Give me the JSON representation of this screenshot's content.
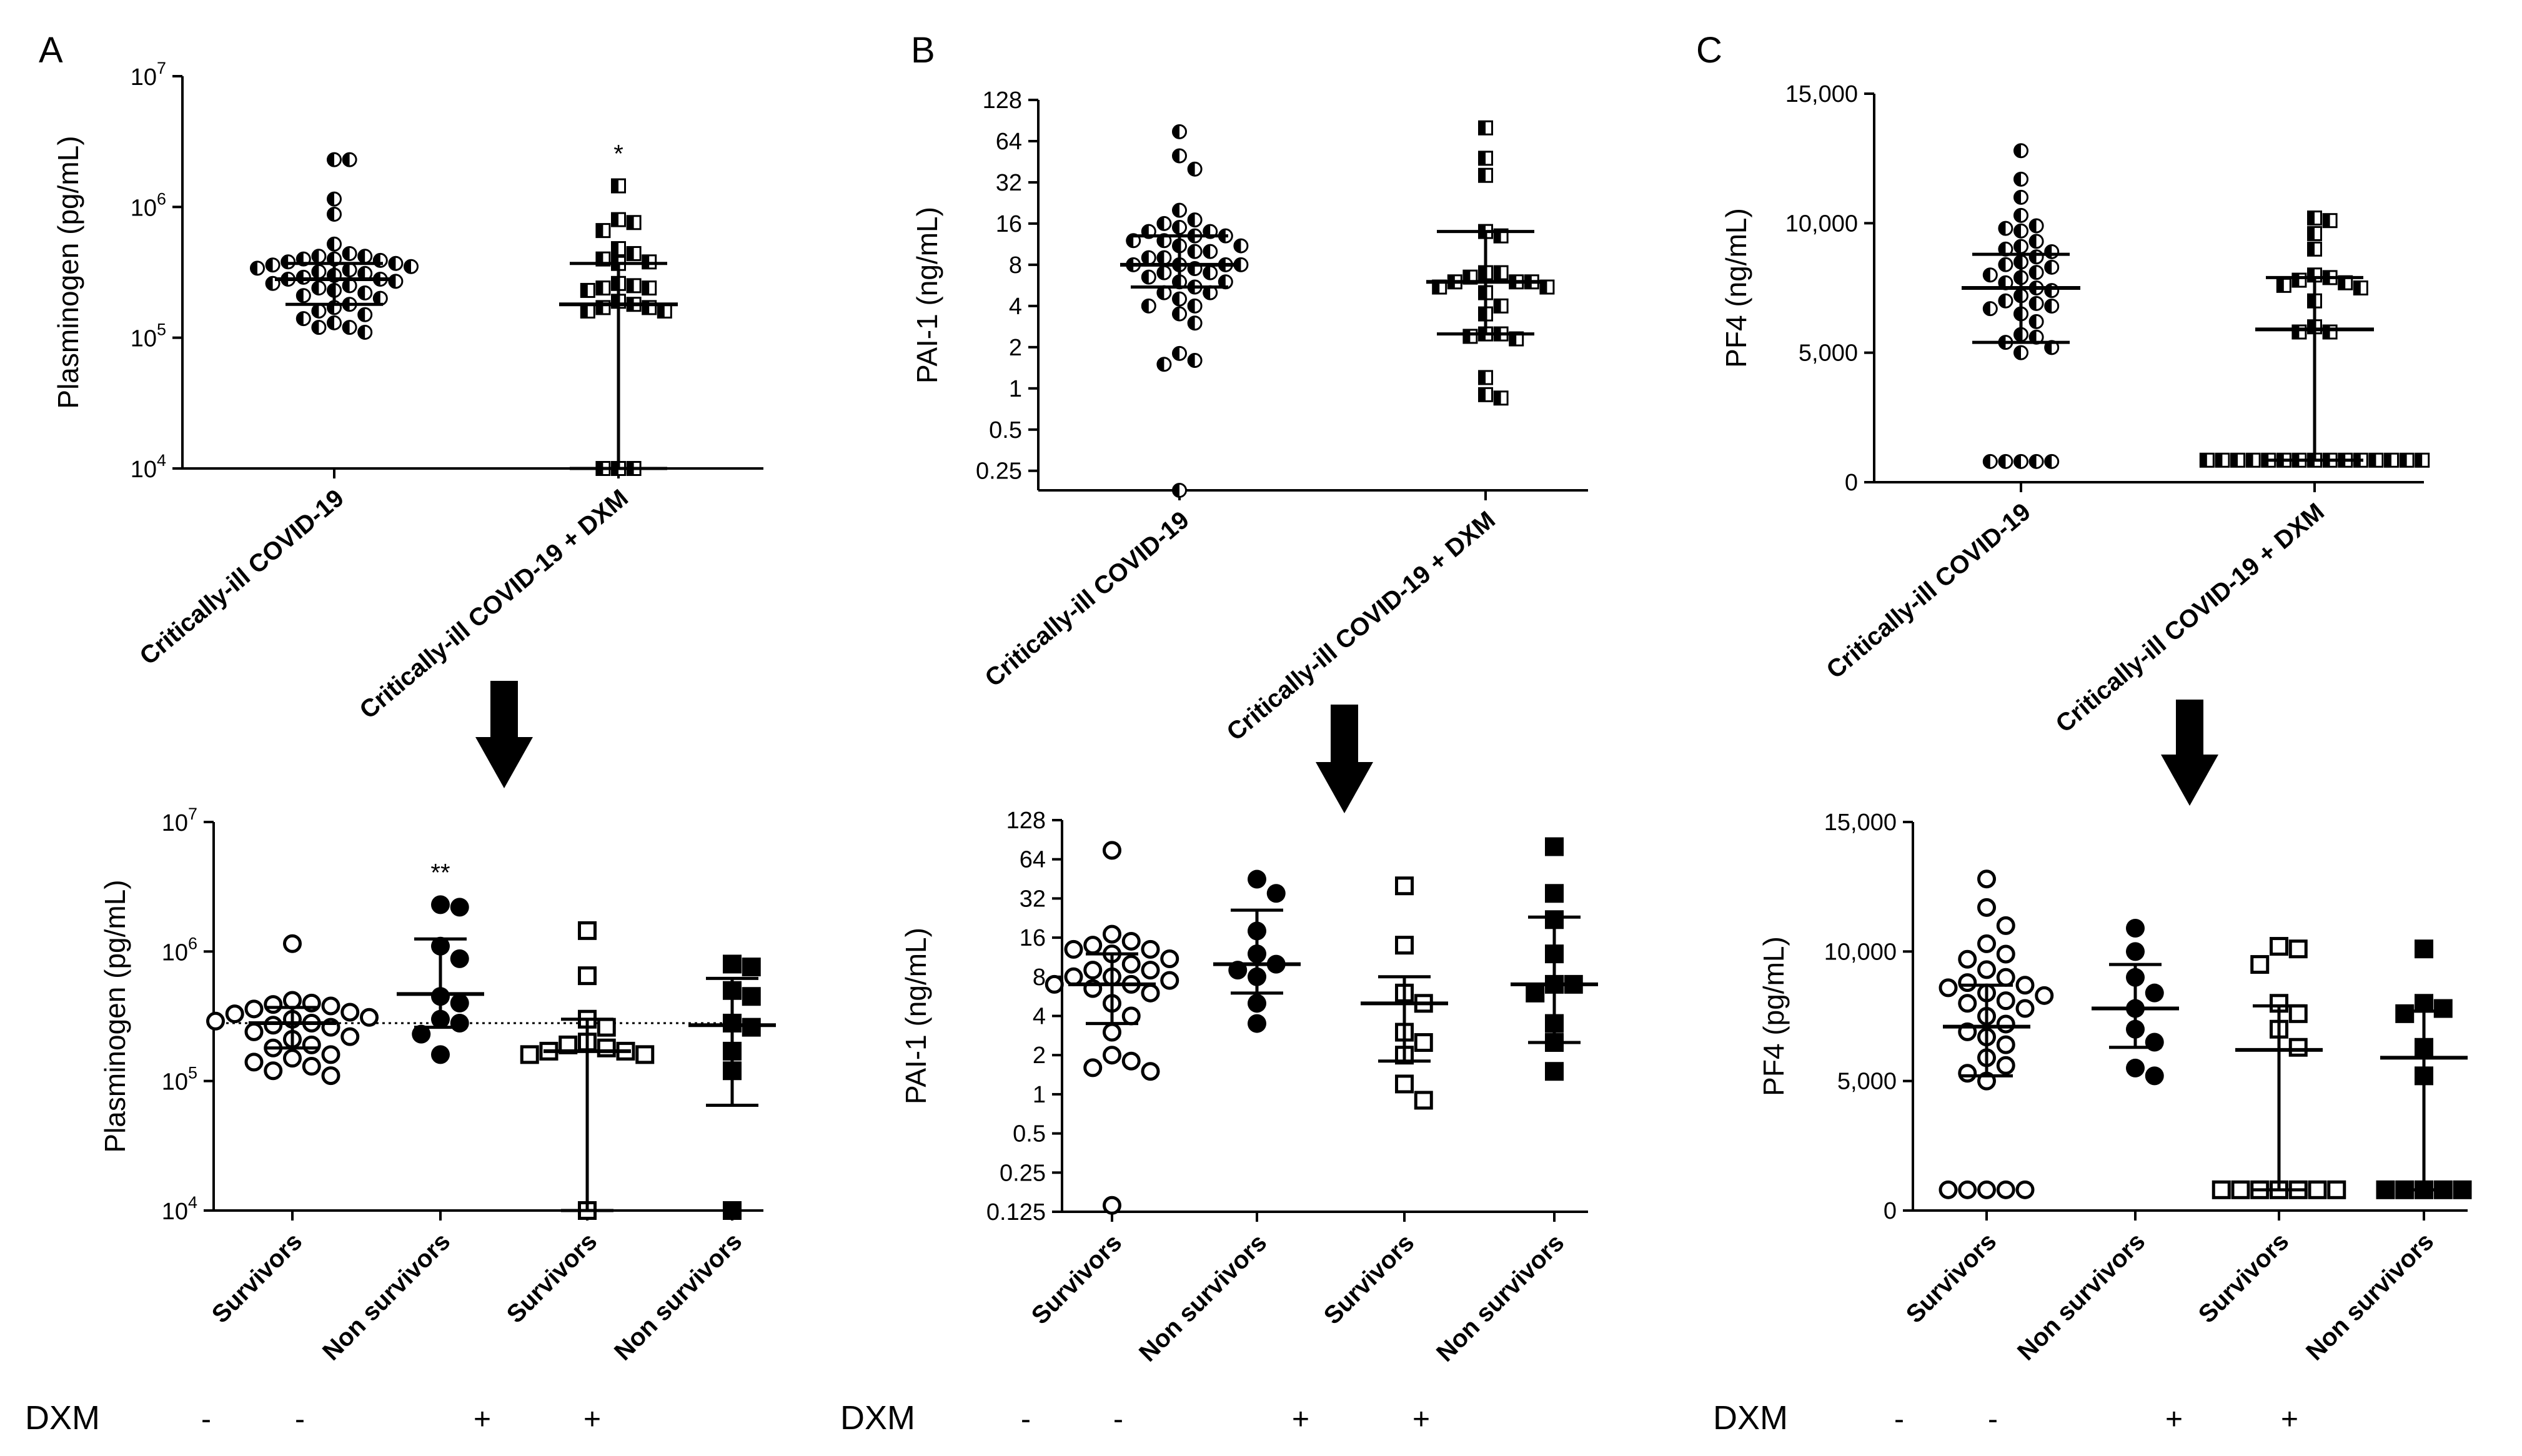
{
  "figure": {
    "panel_labels": [
      "A",
      "B",
      "C"
    ],
    "dxm_row_label": "DXM",
    "dxm_signs": [
      "-",
      "-",
      "+",
      "+"
    ]
  },
  "chart_data": [
    {
      "id": "A_top",
      "type": "scatter",
      "panel": "A",
      "ylabel": "Plasminogen (pg/mL)",
      "yscale": "log10",
      "ylim": [
        10000,
        10000000
      ],
      "yticks": [
        {
          "value": 10000,
          "base": "10",
          "exp": "4"
        },
        {
          "value": 100000,
          "base": "10",
          "exp": "5"
        },
        {
          "value": 1000000,
          "base": "10",
          "exp": "6"
        },
        {
          "value": 10000000,
          "base": "10",
          "exp": "7"
        }
      ],
      "categories": [
        "Critically-ill COVID-19",
        "Critically-ill COVID-19 + DXM"
      ],
      "groups": [
        {
          "name": "Critically-ill COVID-19",
          "marker": "half-circle",
          "values": [
            2300000,
            2300000,
            1150000,
            880000,
            520000,
            440000,
            420000,
            420000,
            400000,
            400000,
            390000,
            380000,
            370000,
            360000,
            350000,
            340000,
            330000,
            320000,
            310000,
            300000,
            290000,
            280000,
            280000,
            270000,
            260000,
            250000,
            240000,
            230000,
            220000,
            210000,
            200000,
            180000,
            170000,
            160000,
            150000,
            140000,
            130000,
            120000,
            120000,
            110000
          ],
          "median": 280000,
          "q1": 180000,
          "q3": 370000
        },
        {
          "name": "Critically-ill COVID-19 + DXM",
          "marker": "half-square",
          "values": [
            1450000,
            800000,
            760000,
            660000,
            480000,
            440000,
            400000,
            380000,
            370000,
            260000,
            250000,
            240000,
            240000,
            230000,
            190000,
            180000,
            170000,
            170000,
            160000,
            160000,
            10000,
            10000,
            10000
          ],
          "median": 180000,
          "q1": 10000,
          "q3": 370000
        }
      ],
      "annotations": [
        {
          "text": "*",
          "group": 1
        }
      ]
    },
    {
      "id": "B_top",
      "type": "scatter",
      "panel": "B",
      "ylabel": "PAI-1 (ng/mL)",
      "yscale": "log2",
      "ylim": [
        0.18,
        128
      ],
      "yticks": [
        "0.25",
        "0.5",
        "1",
        "2",
        "4",
        "8",
        "16",
        "32",
        "64",
        "128"
      ],
      "categories": [
        "Critically-ill COVID-19",
        "Critically-ill COVID-19 + DXM"
      ],
      "groups": [
        {
          "name": "Critically-ill COVID-19",
          "marker": "half-circle",
          "values": [
            75,
            50,
            40,
            20,
            17,
            16,
            15,
            14,
            14,
            13,
            13,
            12,
            12,
            11,
            11,
            10,
            10,
            9,
            9,
            8,
            8,
            8,
            8,
            7.5,
            7,
            7,
            6.5,
            6,
            6,
            5.5,
            5,
            5,
            4.5,
            4,
            4,
            3.5,
            3,
            1.8,
            1.6,
            1.5,
            0.18
          ],
          "median": 8,
          "q1": 5.5,
          "q3": 13
        },
        {
          "name": "Critically-ill COVID-19 + DXM",
          "marker": "half-square",
          "values": [
            80,
            48,
            36,
            14,
            13,
            7,
            7,
            6.5,
            6,
            6,
            6,
            5.5,
            5.5,
            5,
            4,
            3.5,
            2.5,
            2.5,
            2.4,
            2.3,
            1.2,
            0.9,
            0.85
          ],
          "median": 6,
          "q1": 2.5,
          "q3": 14
        }
      ]
    },
    {
      "id": "C_top",
      "type": "scatter",
      "panel": "C",
      "ylabel": "PF4 (ng/mL)",
      "yscale": "linear",
      "ylim": [
        0,
        15000
      ],
      "yticks": [
        "0",
        "5,000",
        "10,000",
        "15,000"
      ],
      "categories": [
        "Critically-ill COVID-19",
        "Critically-ill COVID-19 + DXM"
      ],
      "groups": [
        {
          "name": "Critically-ill COVID-19",
          "marker": "half-circle",
          "values": [
            12800,
            11700,
            11000,
            10300,
            9900,
            9800,
            9700,
            9300,
            9100,
            9000,
            8900,
            8700,
            8500,
            8400,
            8300,
            8100,
            8000,
            7900,
            7700,
            7500,
            7400,
            7200,
            7000,
            6900,
            6800,
            6700,
            6500,
            6200,
            5700,
            5600,
            5400,
            5200,
            5000,
            800,
            800,
            800,
            800,
            800
          ],
          "median": 7500,
          "q1": 5400,
          "q3": 8800
        },
        {
          "name": "Critically-ill COVID-19 + DXM",
          "marker": "half-square",
          "values": [
            10200,
            10100,
            9600,
            9000,
            8000,
            7900,
            7800,
            7700,
            7600,
            7500,
            7000,
            6000,
            5800,
            5800,
            850,
            850,
            850,
            850,
            850,
            850,
            850,
            850,
            850,
            850,
            850,
            850,
            850,
            850,
            850
          ],
          "median": 5900,
          "q1": 850,
          "q3": 7900
        }
      ]
    },
    {
      "id": "A_bottom",
      "type": "scatter",
      "panel": "A",
      "ylabel": "Plasminogen (pg/mL)",
      "yscale": "log10",
      "ylim": [
        10000,
        10000000
      ],
      "yticks": [
        {
          "value": 10000,
          "base": "10",
          "exp": "4"
        },
        {
          "value": 100000,
          "base": "10",
          "exp": "5"
        },
        {
          "value": 1000000,
          "base": "10",
          "exp": "6"
        },
        {
          "value": 10000000,
          "base": "10",
          "exp": "7"
        }
      ],
      "categories": [
        "Survivors",
        "Non survivors",
        "Survivors",
        "Non survivors"
      ],
      "reference_line": 280000,
      "groups": [
        {
          "name": "Survivors",
          "dxm": "-",
          "marker": "open-circle",
          "values": [
            1150000,
            420000,
            400000,
            390000,
            380000,
            360000,
            340000,
            330000,
            310000,
            300000,
            290000,
            280000,
            270000,
            260000,
            240000,
            220000,
            210000,
            190000,
            180000,
            160000,
            150000,
            140000,
            130000,
            120000,
            110000
          ],
          "median": 280000,
          "q1": 180000,
          "q3": 370000
        },
        {
          "name": "Non survivors",
          "dxm": "-",
          "marker": "filled-circle",
          "values": [
            2300000,
            2200000,
            1100000,
            880000,
            450000,
            400000,
            300000,
            280000,
            230000,
            160000
          ],
          "median": 470000,
          "q1": 260000,
          "q3": 1250000
        },
        {
          "name": "Survivors",
          "dxm": "+",
          "marker": "open-square",
          "values": [
            1450000,
            650000,
            300000,
            260000,
            200000,
            190000,
            180000,
            170000,
            170000,
            160000,
            160000,
            10000
          ],
          "median": 170000,
          "q1": 10000,
          "q3": 300000
        },
        {
          "name": "Non survivors",
          "dxm": "+",
          "marker": "filled-square",
          "values": [
            800000,
            760000,
            500000,
            450000,
            280000,
            260000,
            170000,
            120000,
            10000
          ],
          "median": 270000,
          "q1": 65000,
          "q3": 620000
        }
      ],
      "annotations": [
        {
          "text": "**",
          "group": 1
        }
      ]
    },
    {
      "id": "B_bottom",
      "type": "scatter",
      "panel": "B",
      "ylabel": "PAI-1 (ng/mL)",
      "yscale": "log2",
      "ylim": [
        0.125,
        128
      ],
      "yticks": [
        "0.125",
        "0.25",
        "0.5",
        "1",
        "2",
        "4",
        "8",
        "16",
        "32",
        "64",
        "128"
      ],
      "categories": [
        "Survivors",
        "Non survivors",
        "Survivors",
        "Non survivors"
      ],
      "groups": [
        {
          "name": "Survivors",
          "dxm": "-",
          "marker": "open-circle",
          "values": [
            75,
            17,
            15,
            14,
            13,
            13,
            12,
            11,
            10,
            9,
            9,
            8,
            8,
            7.5,
            7,
            7,
            6.5,
            6,
            5,
            4,
            3,
            2,
            1.8,
            1.6,
            1.5,
            0.14
          ],
          "median": 7,
          "q1": 3.5,
          "q3": 12
        },
        {
          "name": "Non survivors",
          "dxm": "-",
          "marker": "filled-circle",
          "values": [
            45,
            35,
            18,
            12,
            10,
            9,
            8,
            5,
            3.5
          ],
          "median": 10,
          "q1": 6,
          "q3": 26
        },
        {
          "name": "Survivors",
          "dxm": "+",
          "marker": "open-square",
          "values": [
            40,
            14,
            6,
            5,
            3,
            2.5,
            2,
            1.2,
            0.9
          ],
          "median": 5,
          "q1": 1.8,
          "q3": 8
        },
        {
          "name": "Non survivors",
          "dxm": "+",
          "marker": "filled-square",
          "values": [
            80,
            35,
            22,
            12,
            7,
            7,
            6,
            3.5,
            2.5,
            1.5
          ],
          "median": 7,
          "q1": 2.5,
          "q3": 23
        }
      ]
    },
    {
      "id": "C_bottom",
      "type": "scatter",
      "panel": "C",
      "ylabel": "PF4 (pg/mL)",
      "yscale": "linear",
      "ylim": [
        0,
        15000
      ],
      "yticks": [
        "0",
        "5,000",
        "10,000",
        "15,000"
      ],
      "categories": [
        "Survivors",
        "Non survivors",
        "Survivors",
        "Non survivors"
      ],
      "groups": [
        {
          "name": "Survivors",
          "dxm": "-",
          "marker": "open-circle",
          "values": [
            12800,
            11700,
            11000,
            10300,
            9900,
            9700,
            9300,
            9000,
            8800,
            8700,
            8600,
            8400,
            8300,
            8100,
            8000,
            7800,
            7500,
            7200,
            6900,
            6700,
            6400,
            5900,
            5600,
            5300,
            5000,
            800,
            800,
            800,
            800,
            800
          ],
          "median": 7100,
          "q1": 5200,
          "q3": 8700
        },
        {
          "name": "Non survivors",
          "dxm": "-",
          "marker": "filled-circle",
          "values": [
            10900,
            10000,
            9000,
            8400,
            7800,
            7000,
            6500,
            5500,
            5200
          ],
          "median": 7800,
          "q1": 6300,
          "q3": 9500
        },
        {
          "name": "Survivors",
          "dxm": "+",
          "marker": "open-square",
          "values": [
            10200,
            10100,
            9500,
            8000,
            7600,
            7000,
            6300,
            800,
            800,
            800,
            800,
            800,
            800,
            800
          ],
          "median": 6200,
          "q1": 800,
          "q3": 7900
        },
        {
          "name": "Non survivors",
          "dxm": "+",
          "marker": "filled-square",
          "values": [
            10100,
            8000,
            7800,
            7600,
            6300,
            5200,
            800,
            800,
            800,
            800,
            800
          ],
          "median": 5900,
          "q1": 800,
          "q3": 7700
        }
      ]
    }
  ]
}
